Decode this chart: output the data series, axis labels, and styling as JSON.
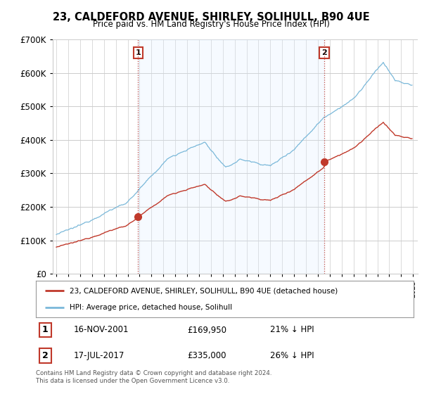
{
  "title_line1": "23, CALDEFORD AVENUE, SHIRLEY, SOLIHULL, B90 4UE",
  "title_line2": "Price paid vs. HM Land Registry's House Price Index (HPI)",
  "ylim": [
    0,
    700000
  ],
  "xlim_start": 1994.7,
  "xlim_end": 2025.4,
  "purchase1_date": 2001.88,
  "purchase1_price": 169950,
  "purchase1_label": "1",
  "purchase2_date": 2017.54,
  "purchase2_price": 335000,
  "purchase2_label": "2",
  "hpi_color": "#7ab8d9",
  "price_color": "#c0392b",
  "vline_color": "#c0392b",
  "shade_color": "#ddeeff",
  "grid_color": "#cccccc",
  "background_color": "#ffffff",
  "legend_house_label": "23, CALDEFORD AVENUE, SHIRLEY, SOLIHULL, B90 4UE (detached house)",
  "legend_hpi_label": "HPI: Average price, detached house, Solihull",
  "table_row1": [
    "1",
    "16-NOV-2001",
    "£169,950",
    "21% ↓ HPI"
  ],
  "table_row2": [
    "2",
    "17-JUL-2017",
    "£335,000",
    "26% ↓ HPI"
  ],
  "footnote": "Contains HM Land Registry data © Crown copyright and database right 2024.\nThis data is licensed under the Open Government Licence v3.0."
}
